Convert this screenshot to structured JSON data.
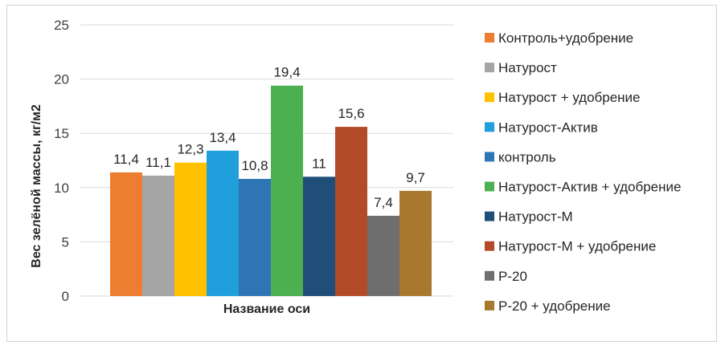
{
  "chart_data": {
    "type": "bar",
    "title": "",
    "xlabel": "Название оси",
    "ylabel": "Вес зелёной массы, кг/м2",
    "ylim": [
      0,
      25
    ],
    "yticks": [
      0,
      5,
      10,
      15,
      20,
      25
    ],
    "grid": "horizontal",
    "legend_position": "right",
    "series": [
      {
        "name": "Контроль+удобрение",
        "value": 11.4,
        "label": "11,4",
        "color": "#ED7D31"
      },
      {
        "name": "Натурост",
        "value": 11.1,
        "label": "11,1",
        "color": "#A5A5A5"
      },
      {
        "name": "Натурост + удобрение",
        "value": 12.3,
        "label": "12,3",
        "color": "#FFC000"
      },
      {
        "name": "Натурост-Актив",
        "value": 13.4,
        "label": "13,4",
        "color": "#1F9FDB"
      },
      {
        "name": "контроль",
        "value": 10.8,
        "label": "10,8",
        "color": "#2E75B6"
      },
      {
        "name": "Натурост-Актив + удобрение",
        "value": 19.4,
        "label": "19,4",
        "color": "#4CAF50"
      },
      {
        "name": "Натурост-М",
        "value": 11,
        "label": "11",
        "color": "#1F4E79"
      },
      {
        "name": "Натурост-М + удобрение",
        "value": 15.6,
        "label": "15,6",
        "color": "#B34A28"
      },
      {
        "name": "Р-20",
        "value": 7.4,
        "label": "7,4",
        "color": "#6E6E6E"
      },
      {
        "name": "Р-20 + удобрение",
        "value": 9.7,
        "label": "9,7",
        "color": "#A8782E"
      }
    ]
  }
}
